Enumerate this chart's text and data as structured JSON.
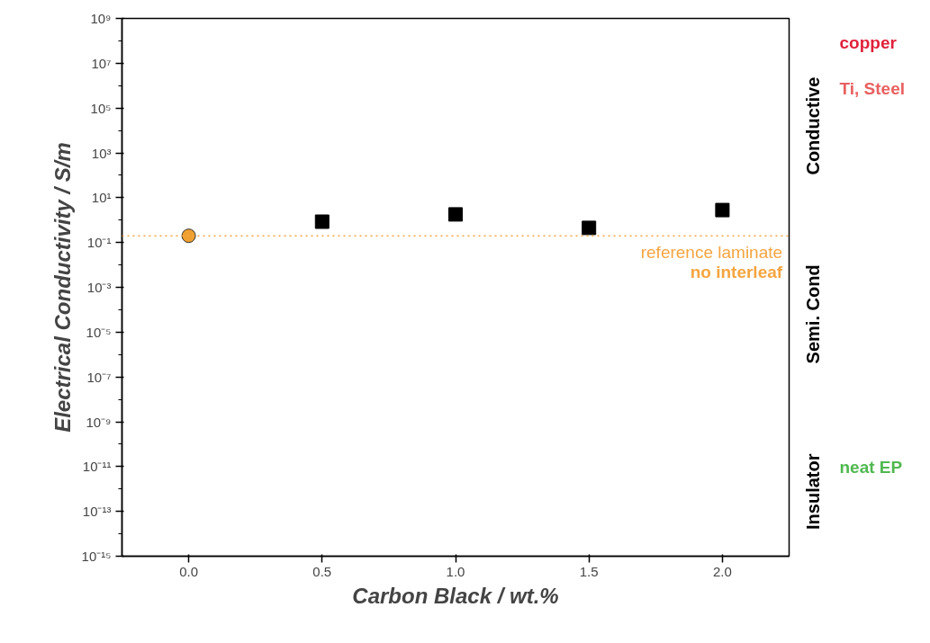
{
  "chart_data": {
    "type": "scatter",
    "xlabel": "Carbon Black / wt.%",
    "ylabel": "Electrical Conductivity / S/m",
    "log": "y",
    "xlim": [
      -0.25,
      2.25
    ],
    "xticks": [
      {
        "value": 0,
        "label": "0.0"
      },
      0.5,
      {
        "value": 1,
        "label": "1.0"
      },
      1.5,
      {
        "value": 2,
        "label": "2.0"
      }
    ],
    "ylim": [
      1e-15,
      1000000000.0
    ],
    "yticks": [
      {
        "value": 1e-15,
        "label": "10⁻¹⁵"
      },
      {
        "value": 1e-13,
        "label": "10⁻¹³"
      },
      {
        "value": 1e-11,
        "label": "10⁻¹¹"
      },
      {
        "value": 1e-09,
        "label": "10⁻⁹"
      },
      {
        "value": 1e-07,
        "label": "10⁻⁷"
      },
      {
        "value": 1e-05,
        "label": "10⁻⁵"
      },
      {
        "value": 0.001,
        "label": "10⁻³"
      },
      {
        "value": 0.1,
        "label": "10⁻¹"
      },
      {
        "value": 10,
        "label": "10¹"
      },
      {
        "value": 1000,
        "label": "10³"
      },
      {
        "value": 100000,
        "label": "10⁵"
      },
      {
        "value": 10000000,
        "label": "10⁷"
      },
      {
        "value": 1000000000,
        "label": "10⁹"
      }
    ],
    "grid": false,
    "series": [
      {
        "color": "#f0a030",
        "marker": "circle",
        "x": [
          0
        ],
        "values": [
          0.2
        ]
      },
      {
        "color": "#000000",
        "marker": "square",
        "x": [
          0.5,
          1,
          1.5,
          2
        ],
        "values": [
          0.85,
          1.8,
          0.45,
          2.8
        ]
      }
    ],
    "ref_lines": [
      {
        "axis": "y",
        "value": 0.2,
        "label": "reference laminate\nno interleaf",
        "color": "#f5a540",
        "line_style": "dotted"
      }
    ],
    "annotations": [
      "Conductive",
      "Semi. Cond",
      "Insulator",
      "copper",
      "Ti, Steel",
      "neat EP"
    ]
  }
}
